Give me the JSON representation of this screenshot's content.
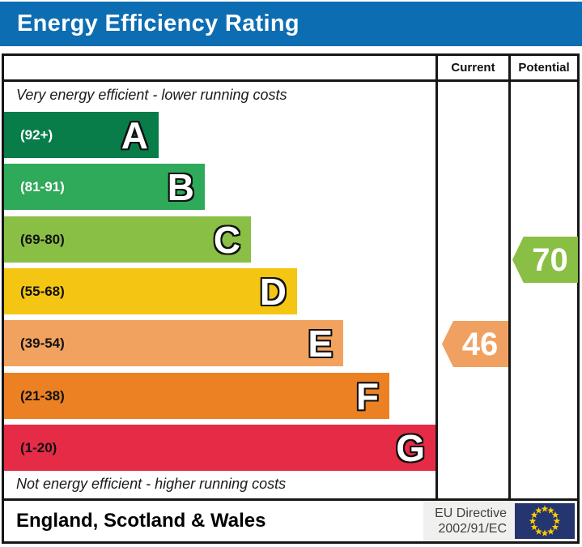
{
  "title": "Energy Efficiency Rating",
  "columns": {
    "current": "Current",
    "potential": "Potential"
  },
  "captions": {
    "top": "Very energy efficient - lower running costs",
    "bottom": "Not energy efficient - higher running costs"
  },
  "bands": [
    {
      "letter": "A",
      "range": "(92+)",
      "color": "#087c49",
      "label_color": "#ffffff"
    },
    {
      "letter": "B",
      "range": "(81-91)",
      "color": "#2fa95a",
      "label_color": "#ffffff"
    },
    {
      "letter": "C",
      "range": "(69-80)",
      "color": "#8abf45",
      "label_color": "#111111"
    },
    {
      "letter": "D",
      "range": "(55-68)",
      "color": "#f4c613",
      "label_color": "#111111"
    },
    {
      "letter": "E",
      "range": "(39-54)",
      "color": "#f2a25f",
      "label_color": "#111111"
    },
    {
      "letter": "F",
      "range": "(21-38)",
      "color": "#ec8123",
      "label_color": "#111111"
    },
    {
      "letter": "G",
      "range": "(1-20)",
      "color": "#e62b47",
      "label_color": "#111111"
    }
  ],
  "ratings": {
    "current": {
      "value": "46",
      "color": "#f0a161"
    },
    "potential": {
      "value": "70",
      "color": "#8abf45"
    }
  },
  "footer": {
    "region": "England, Scotland & Wales",
    "directive_line1": "EU Directive",
    "directive_line2": "2002/91/EC"
  },
  "flag": {
    "bg": "#24356f",
    "star_color": "#ffcc00"
  },
  "theme": {
    "header_bg": "#0d6db3",
    "border_color": "#161616"
  },
  "chart_data": {
    "type": "bar",
    "title": "Energy Efficiency Rating",
    "categories": [
      "A",
      "B",
      "C",
      "D",
      "E",
      "F",
      "G"
    ],
    "band_ranges": [
      "92+",
      "81-91",
      "69-80",
      "55-68",
      "39-54",
      "21-38",
      "1-20"
    ],
    "band_colors": [
      "#087c49",
      "#2fa95a",
      "#8abf45",
      "#f4c613",
      "#f2a25f",
      "#ec8123",
      "#e62b47"
    ],
    "series": [
      {
        "name": "Current",
        "value": 46,
        "band": "E"
      },
      {
        "name": "Potential",
        "value": 70,
        "band": "C"
      }
    ],
    "xlabel": "",
    "ylabel": "",
    "scale": [
      1,
      100
    ],
    "legend_position": "top-right-columns",
    "grid": false,
    "top_caption": "Very energy efficient - lower running costs",
    "bottom_caption": "Not energy efficient - higher running costs",
    "region_label": "England, Scotland & Wales",
    "directive_label": "EU Directive 2002/91/EC"
  }
}
